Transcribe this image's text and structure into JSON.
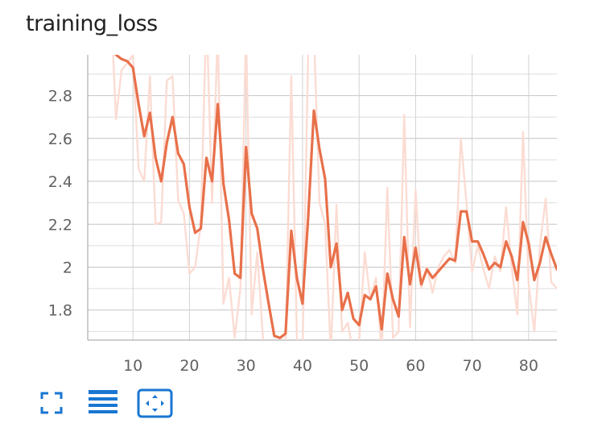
{
  "chart_data": {
    "type": "line",
    "title": "training_loss",
    "xlabel": "",
    "ylabel": "",
    "xlim": [
      2,
      85
    ],
    "ylim": [
      1.66,
      2.99
    ],
    "xticks": [
      10,
      20,
      30,
      40,
      50,
      60,
      70,
      80
    ],
    "yticks": [
      1.8,
      2.0,
      2.2,
      2.4,
      2.6,
      2.8
    ],
    "ytick_labels": [
      "1.8",
      "2",
      "2.2",
      "2.4",
      "2.6",
      "2.8"
    ],
    "grid": true,
    "series": [
      {
        "role": "raw",
        "color": "#fbdcd3",
        "x": [
          6,
          7,
          8,
          9,
          10,
          11,
          12,
          13,
          14,
          15,
          16,
          17,
          18,
          19,
          20,
          21,
          22,
          23,
          24,
          25,
          26,
          27,
          28,
          29,
          30,
          31,
          32,
          33,
          34,
          35,
          36,
          37,
          38,
          39,
          40,
          41,
          42,
          43,
          44,
          45,
          46,
          47,
          48,
          49,
          50,
          51,
          52,
          53,
          54,
          55,
          56,
          57,
          58,
          59,
          60,
          61,
          62,
          63,
          64,
          65,
          66,
          67,
          68,
          69,
          70,
          71,
          72,
          73,
          74,
          75,
          76,
          77,
          78,
          79,
          80,
          81,
          82,
          83,
          84,
          85
        ],
        "y": [
          3.3,
          2.69,
          2.92,
          2.95,
          2.99,
          2.46,
          2.4,
          2.89,
          2.2,
          2.21,
          2.87,
          2.89,
          2.31,
          2.25,
          1.97,
          2.0,
          2.2,
          3.2,
          2.3,
          3.1,
          1.83,
          1.95,
          1.67,
          1.9,
          3.1,
          1.78,
          2.07,
          1.67,
          1.6,
          1.62,
          1.55,
          1.62,
          2.89,
          1.67,
          1.6,
          3.0,
          3.1,
          2.3,
          2.2,
          1.6,
          2.29,
          1.7,
          1.74,
          1.6,
          1.65,
          2.07,
          1.85,
          1.95,
          1.6,
          2.37,
          1.67,
          1.7,
          2.71,
          1.72,
          2.36,
          1.9,
          2.0,
          1.88,
          2.0,
          2.05,
          2.08,
          2.02,
          2.6,
          2.3,
          1.98,
          2.1,
          1.99,
          1.9,
          2.05,
          1.98,
          2.28,
          2.0,
          1.78,
          2.63,
          1.92,
          1.7,
          2.1,
          2.32,
          1.93,
          1.9
        ]
      },
      {
        "role": "smoothed",
        "color": "#e8704a",
        "x": [
          6,
          7,
          8,
          9,
          10,
          11,
          12,
          13,
          14,
          15,
          16,
          17,
          18,
          19,
          20,
          21,
          22,
          23,
          24,
          25,
          26,
          27,
          28,
          29,
          30,
          31,
          32,
          33,
          34,
          35,
          36,
          37,
          38,
          39,
          40,
          41,
          42,
          43,
          44,
          45,
          46,
          47,
          48,
          49,
          50,
          51,
          52,
          53,
          54,
          55,
          56,
          57,
          58,
          59,
          60,
          61,
          62,
          63,
          64,
          65,
          66,
          67,
          68,
          69,
          70,
          71,
          72,
          73,
          74,
          75,
          76,
          77,
          78,
          79,
          80,
          81,
          82,
          83,
          84,
          85
        ],
        "y": [
          3.1,
          2.99,
          2.97,
          2.96,
          2.93,
          2.76,
          2.61,
          2.72,
          2.51,
          2.4,
          2.58,
          2.7,
          2.53,
          2.48,
          2.28,
          2.16,
          2.18,
          2.51,
          2.4,
          2.76,
          2.39,
          2.22,
          1.97,
          1.95,
          2.56,
          2.25,
          2.18,
          1.99,
          1.83,
          1.68,
          1.67,
          1.69,
          2.17,
          1.95,
          1.83,
          2.23,
          2.73,
          2.55,
          2.41,
          2.0,
          2.11,
          1.8,
          1.88,
          1.76,
          1.73,
          1.87,
          1.85,
          1.91,
          1.71,
          1.97,
          1.85,
          1.77,
          2.14,
          1.92,
          2.09,
          1.92,
          1.99,
          1.95,
          1.98,
          2.01,
          2.04,
          2.03,
          2.26,
          2.26,
          2.12,
          2.12,
          2.06,
          1.99,
          2.02,
          2.0,
          2.12,
          2.05,
          1.94,
          2.21,
          2.11,
          1.94,
          2.02,
          2.14,
          2.06,
          1.99
        ]
      }
    ]
  },
  "toolbar": {
    "fullscreen_icon": "fullscreen-icon",
    "list_icon": "list-icon",
    "fit_domain_icon": "fit-domain-icon",
    "accent_color": "#1976d2"
  }
}
